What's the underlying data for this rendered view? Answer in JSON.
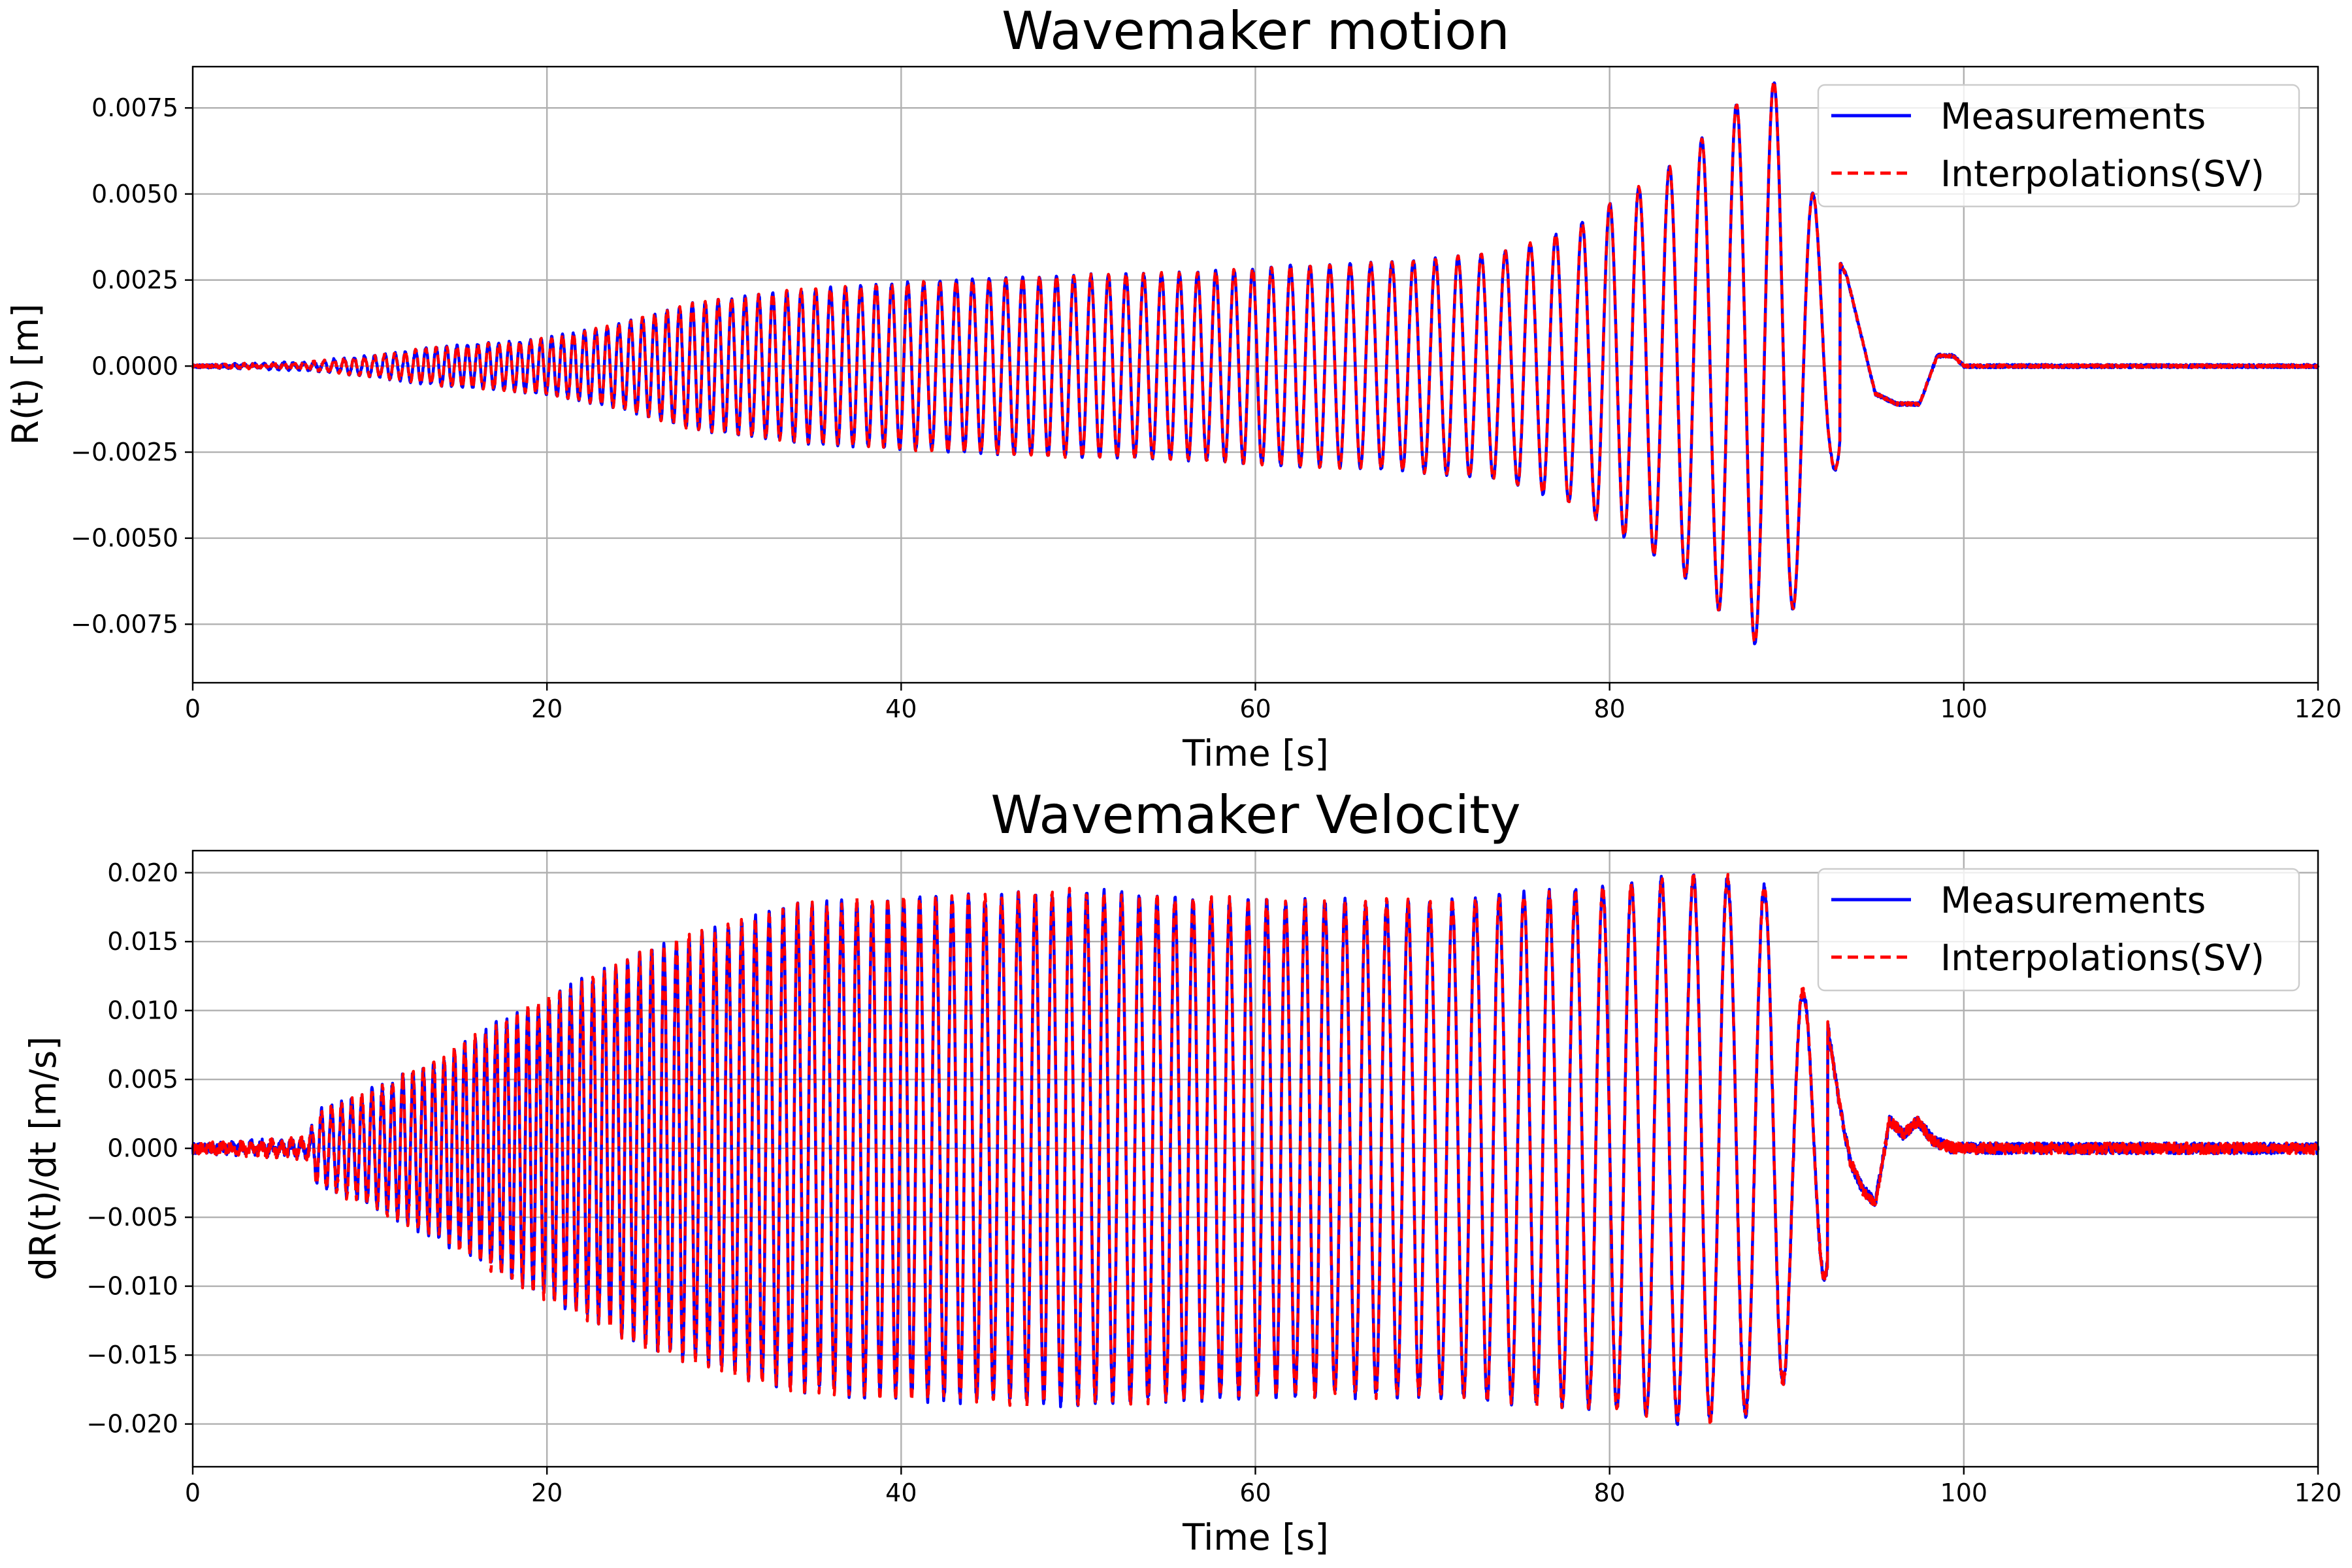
{
  "chart_data": [
    {
      "type": "line",
      "title": "Wavemaker motion",
      "xlabel": "Time [s]",
      "ylabel": "R(t) [m]",
      "xlim": [
        0,
        120
      ],
      "ylim": [
        -0.0092,
        0.0087
      ],
      "xticks": [
        0,
        20,
        40,
        60,
        80,
        100,
        120
      ],
      "xtick_labels": [
        "0",
        "20",
        "40",
        "60",
        "80",
        "100",
        "120"
      ],
      "yticks": [
        0.0075,
        0.005,
        0.0025,
        0.0,
        -0.0025,
        -0.005,
        -0.0075
      ],
      "ytick_labels": [
        "0.0075",
        "0.0050",
        "0.0025",
        "0.0000",
        "−0.0025",
        "−0.0050",
        "−0.0075"
      ],
      "grid": true,
      "legend_position": "top-right",
      "signal": {
        "kind": "displacement",
        "envelope_t": [
          0,
          6.5,
          10,
          14,
          18,
          20,
          24,
          28,
          34,
          40,
          48,
          56,
          62,
          68,
          74,
          78,
          80,
          82,
          84,
          86,
          88,
          89.6,
          91,
          92.5
        ],
        "envelope_a": [
          0,
          0.0001,
          0.00028,
          0.00055,
          0.0007,
          0.0008,
          0.0012,
          0.0018,
          0.0022,
          0.0024,
          0.0026,
          0.0027,
          0.0029,
          0.003,
          0.0033,
          0.004,
          0.0047,
          0.0053,
          0.006,
          0.007,
          0.008,
          0.0083,
          0.006,
          0.003
        ],
        "period_t": [
          0,
          20,
          40,
          60,
          70,
          78,
          84,
          88,
          92.5
        ],
        "period_s": [
          0.55,
          0.6,
          0.9,
          1.05,
          1.25,
          1.5,
          1.8,
          2.1,
          2.4
        ],
        "cut_time": 93,
        "tail": {
          "t": [
            93,
            93.4,
            95,
            96.2,
            97.5,
            98.5,
            99.4,
            100
          ],
          "r": [
            0.003,
            0.0026,
            -0.0008,
            -0.0011,
            -0.0011,
            0.0003,
            0.0003,
            0.0
          ]
        }
      },
      "series": [
        {
          "name": "Measurements",
          "color": "#0000ff",
          "style": "solid",
          "noise": 5e-05
        },
        {
          "name": "Interpolations(SV)",
          "color": "#ff0000",
          "style": "dashed",
          "noise": 4e-05
        }
      ]
    },
    {
      "type": "line",
      "title": "Wavemaker Velocity",
      "xlabel": "Time [s]",
      "ylabel": "dR(t)/dt [m/s]",
      "xlim": [
        0,
        120
      ],
      "ylim": [
        -0.0231,
        0.0216
      ],
      "xticks": [
        0,
        20,
        40,
        60,
        80,
        100,
        120
      ],
      "xtick_labels": [
        "0",
        "20",
        "40",
        "60",
        "80",
        "100",
        "120"
      ],
      "yticks": [
        0.02,
        0.015,
        0.01,
        0.005,
        0.0,
        -0.005,
        -0.01,
        -0.015,
        -0.02
      ],
      "ytick_labels": [
        "0.020",
        "0.015",
        "0.010",
        "0.005",
        "0.000",
        "−0.005",
        "−0.010",
        "−0.015",
        "−0.020"
      ],
      "grid": true,
      "legend_position": "top-right",
      "signal": {
        "kind": "velocity",
        "envelope_t": [
          0,
          6.5,
          7,
          10,
          14,
          18,
          22,
          26,
          30,
          34,
          40,
          50,
          60,
          70,
          80,
          84,
          87,
          89.5,
          91,
          92.3
        ],
        "envelope_a": [
          0,
          0.0005,
          0.0025,
          0.004,
          0.0065,
          0.0095,
          0.012,
          0.0145,
          0.016,
          0.0175,
          0.018,
          0.0185,
          0.0178,
          0.0178,
          0.0188,
          0.0198,
          0.0195,
          0.0185,
          0.011,
          0.009
        ],
        "period_t": [
          0,
          20,
          40,
          60,
          70,
          78,
          84,
          88,
          92
        ],
        "period_s": [
          0.55,
          0.6,
          0.9,
          1.05,
          1.25,
          1.5,
          1.8,
          2.1,
          2.4
        ],
        "cut_time": 92.3,
        "tail": {
          "t": [
            92.3,
            93,
            93.6,
            94.3,
            95,
            95.8,
            96.6,
            97.4,
            98.3,
            99.4,
            100.3
          ],
          "r": [
            0.009,
            0.003,
            -0.001,
            -0.003,
            -0.004,
            0.002,
            0.001,
            0.002,
            0.0005,
            0.0,
            0.0
          ]
        }
      },
      "series": [
        {
          "name": "Measurements",
          "color": "#0000ff",
          "style": "solid",
          "noise": 0.0004
        },
        {
          "name": "Interpolations(SV)",
          "color": "#ff0000",
          "style": "dashed",
          "noise": 0.0004
        }
      ]
    }
  ]
}
